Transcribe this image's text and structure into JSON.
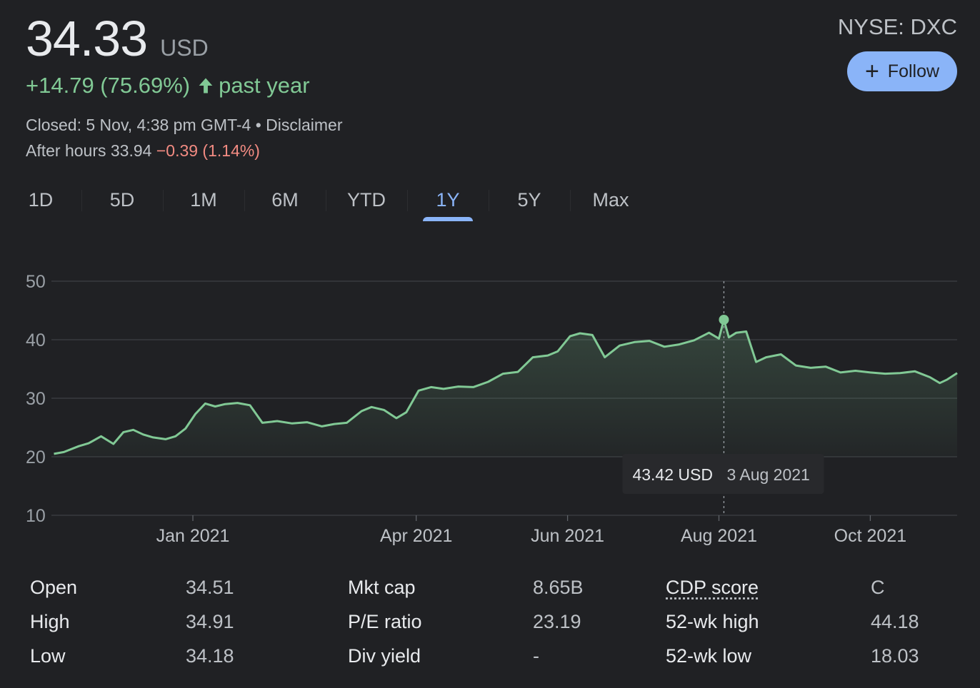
{
  "header": {
    "price": "34.33",
    "currency": "USD",
    "change": "+14.79 (75.69%)",
    "period": "past year",
    "closed": "Closed: 5 Nov, 4:38 pm GMT-4 • Disclaimer",
    "after_hours_label": "After hours 33.94",
    "after_hours_change": "−0.39 (1.14%)",
    "exchange": "NYSE: DXC",
    "follow_label": "Follow"
  },
  "tabs": [
    "1D",
    "5D",
    "1M",
    "6M",
    "YTD",
    "1Y",
    "5Y",
    "Max"
  ],
  "active_tab": "1Y",
  "colors": {
    "background": "#202124",
    "positive": "#81c995",
    "negative": "#f28b82",
    "accent": "#8ab4f8",
    "gridline": "#3c4043"
  },
  "chart_data": {
    "type": "area",
    "title": "",
    "xlabel": "",
    "ylabel": "",
    "ylim": [
      10,
      50
    ],
    "yticks": [
      10,
      20,
      30,
      40,
      50
    ],
    "xlim": [
      "2020-11-05",
      "2021-11-05"
    ],
    "xticks": [
      {
        "date": "2021-01-01",
        "label": "Jan 2021"
      },
      {
        "date": "2021-04-01",
        "label": "Apr 2021"
      },
      {
        "date": "2021-06-01",
        "label": "Jun 2021"
      },
      {
        "date": "2021-08-01",
        "label": "Aug 2021"
      },
      {
        "date": "2021-10-01",
        "label": "Oct 2021"
      }
    ],
    "grid": true,
    "series": [
      {
        "x": [
          "2020-11-06",
          "2020-11-10",
          "2020-11-16",
          "2020-11-20",
          "2020-11-25",
          "2020-11-30",
          "2020-12-04",
          "2020-12-08",
          "2020-12-12",
          "2020-12-16",
          "2020-12-21",
          "2020-12-25",
          "2020-12-29",
          "2021-01-02",
          "2021-01-06",
          "2021-01-10",
          "2021-01-14",
          "2021-01-19",
          "2021-01-24",
          "2021-01-29",
          "2021-02-04",
          "2021-02-10",
          "2021-02-16",
          "2021-02-22",
          "2021-02-27",
          "2021-03-04",
          "2021-03-10",
          "2021-03-14",
          "2021-03-19",
          "2021-03-24",
          "2021-03-28",
          "2021-04-02",
          "2021-04-07",
          "2021-04-12",
          "2021-04-18",
          "2021-04-24",
          "2021-04-30",
          "2021-05-06",
          "2021-05-12",
          "2021-05-18",
          "2021-05-24",
          "2021-05-28",
          "2021-06-02",
          "2021-06-06",
          "2021-06-11",
          "2021-06-16",
          "2021-06-22",
          "2021-06-28",
          "2021-07-04",
          "2021-07-10",
          "2021-07-16",
          "2021-07-22",
          "2021-07-28",
          "2021-08-01",
          "2021-08-03",
          "2021-08-05",
          "2021-08-08",
          "2021-08-12",
          "2021-08-16",
          "2021-08-20",
          "2021-08-26",
          "2021-09-01",
          "2021-09-07",
          "2021-09-13",
          "2021-09-19",
          "2021-09-25",
          "2021-10-01",
          "2021-10-07",
          "2021-10-13",
          "2021-10-19",
          "2021-10-25",
          "2021-10-29",
          "2021-11-01",
          "2021-11-05"
        ],
        "y": [
          20.5,
          20.8,
          21.8,
          22.3,
          23.5,
          22.2,
          24.2,
          24.6,
          23.8,
          23.3,
          23.0,
          23.5,
          24.8,
          27.3,
          29.1,
          28.6,
          29.0,
          29.2,
          28.8,
          25.8,
          26.1,
          25.7,
          25.9,
          25.2,
          25.6,
          25.8,
          27.8,
          28.5,
          28.0,
          26.6,
          27.6,
          31.3,
          31.9,
          31.6,
          32.0,
          31.9,
          32.8,
          34.2,
          34.5,
          37.0,
          37.3,
          38.0,
          40.6,
          41.1,
          40.8,
          37.0,
          39.0,
          39.6,
          39.8,
          38.8,
          39.2,
          39.9,
          41.2,
          40.2,
          43.42,
          40.4,
          41.2,
          41.4,
          36.2,
          37.0,
          37.5,
          35.6,
          35.2,
          35.4,
          34.4,
          34.7,
          34.4,
          34.2,
          34.3,
          34.6,
          33.6,
          32.6,
          33.2,
          34.3
        ]
      }
    ],
    "tooltip": {
      "value": "43.42 USD",
      "date": "3 Aug 2021",
      "x": "2021-08-03",
      "y": 43.42
    }
  },
  "stats": {
    "columns": [
      [
        {
          "label": "Open",
          "value": "34.51"
        },
        {
          "label": "High",
          "value": "34.91"
        },
        {
          "label": "Low",
          "value": "34.18"
        }
      ],
      [
        {
          "label": "Mkt cap",
          "value": "8.65B"
        },
        {
          "label": "P/E ratio",
          "value": "23.19"
        },
        {
          "label": "Div yield",
          "value": "-"
        }
      ],
      [
        {
          "label": "CDP score",
          "value": "C"
        },
        {
          "label": "52-wk high",
          "value": "44.18"
        },
        {
          "label": "52-wk low",
          "value": "18.03"
        }
      ]
    ]
  }
}
